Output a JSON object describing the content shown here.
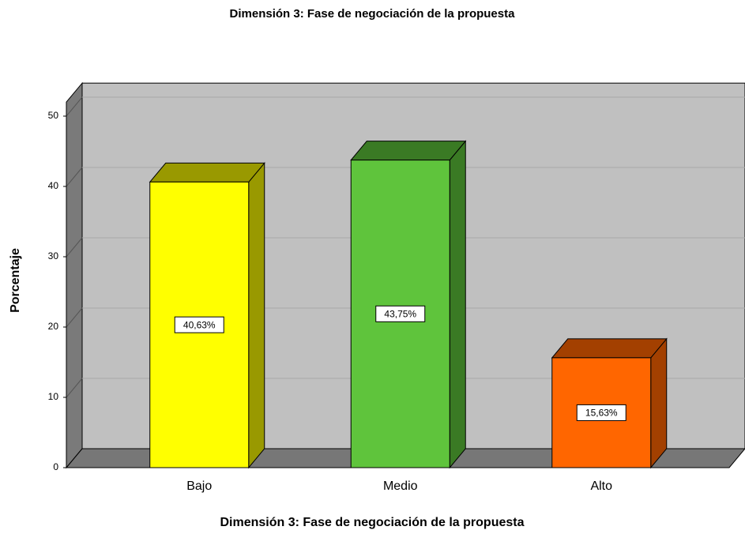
{
  "chart_data": {
    "type": "bar3d",
    "title": "Dimensión 3: Fase de negociación de la propuesta",
    "x_label": "Dimensión 3: Fase de negociación de la propuesta",
    "y_label": "Porcentaje",
    "categories": [
      "Bajo",
      "Medio",
      "Alto"
    ],
    "values": [
      40.63,
      43.75,
      15.63
    ],
    "value_labels": [
      "40,63%",
      "43,75%",
      "15,63%"
    ],
    "colors": [
      "#ffff00",
      "#5fc43c",
      "#ff6600"
    ],
    "side_colors": [
      "#999900",
      "#3a7a24",
      "#a34000"
    ],
    "ylim": [
      0,
      52
    ],
    "yticks": [
      0,
      10,
      20,
      30,
      40,
      50
    ],
    "grid": true
  }
}
